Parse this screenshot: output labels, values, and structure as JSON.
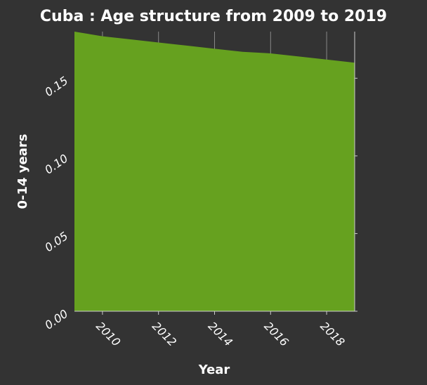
{
  "chart_data": {
    "type": "area",
    "title": "Cuba : Age structure from 2009 to 2019",
    "xlabel": "Year",
    "ylabel": "0-14 years",
    "x": [
      2009,
      2010,
      2011,
      2012,
      2013,
      2014,
      2015,
      2016,
      2017,
      2018,
      2019
    ],
    "series": [
      {
        "values": [
          0.18,
          0.177,
          0.175,
          0.173,
          0.171,
          0.169,
          0.167,
          0.166,
          0.164,
          0.162,
          0.16
        ]
      }
    ],
    "xlim": [
      2009,
      2019
    ],
    "ylim": [
      0,
      0.18
    ],
    "xticks": [
      2010,
      2012,
      2014,
      2016,
      2018
    ],
    "yticks": [
      "0.00",
      "0.05",
      "0.10",
      "0.15"
    ],
    "grid": true,
    "colors": {
      "background": "#333333",
      "area": "#66a11f",
      "grid": "#888888",
      "text": "#ffffff"
    }
  }
}
